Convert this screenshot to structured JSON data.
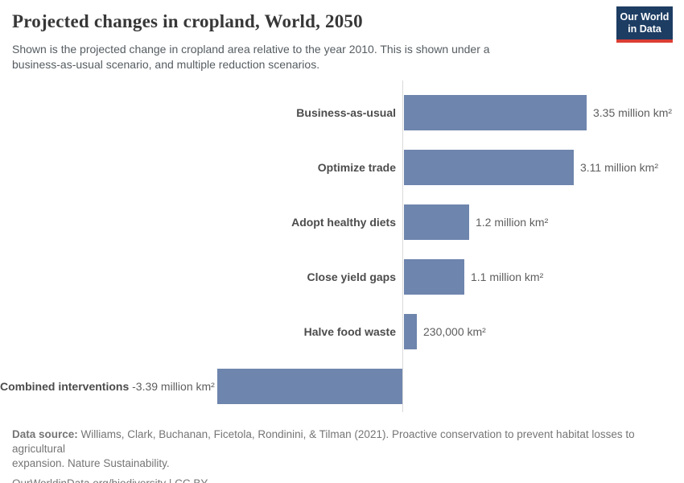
{
  "header": {
    "title": "Projected changes in cropland, World, 2050",
    "subtitle": "Shown is the projected change in cropland area relative to the year 2010. This is shown under a\nbusiness-as-usual scenario, and multiple reduction scenarios.",
    "logo": {
      "line1": "Our World",
      "line2": "in Data",
      "bg_color": "#1d3d63",
      "stripe_color": "#dc3d33"
    }
  },
  "chart_data": {
    "type": "bar",
    "orientation": "horizontal",
    "title": "Projected changes in cropland, World, 2050",
    "categories": [
      "Business-as-usual",
      "Optimize trade",
      "Adopt healthy diets",
      "Close yield gaps",
      "Halve food waste",
      "Combined interventions"
    ],
    "values_million_km2": [
      3.35,
      3.11,
      1.2,
      1.1,
      0.23,
      -3.39
    ],
    "value_labels": [
      "3.35 million km²",
      "3.11 million km²",
      "1.2 million km²",
      "1.1 million km²",
      "230,000 km²",
      "-3.39 million km²"
    ],
    "unit": "million km²",
    "baseline": 0,
    "xlim": [
      -3.39,
      3.35
    ],
    "grid": false,
    "legend": "none",
    "bar_color": "#6e85ad",
    "axis_line_color": "#d9d9d9"
  },
  "footer": {
    "source_label": "Data source:",
    "source_text": "Williams, Clark, Buchanan, Ficetola, Rondinini, & Tilman (2021). Proactive conservation to prevent habitat losses to agricultural\nexpansion. Nature Sustainability.",
    "link_line": "OurWorldinData.org/biodiversity | CC BY"
  }
}
